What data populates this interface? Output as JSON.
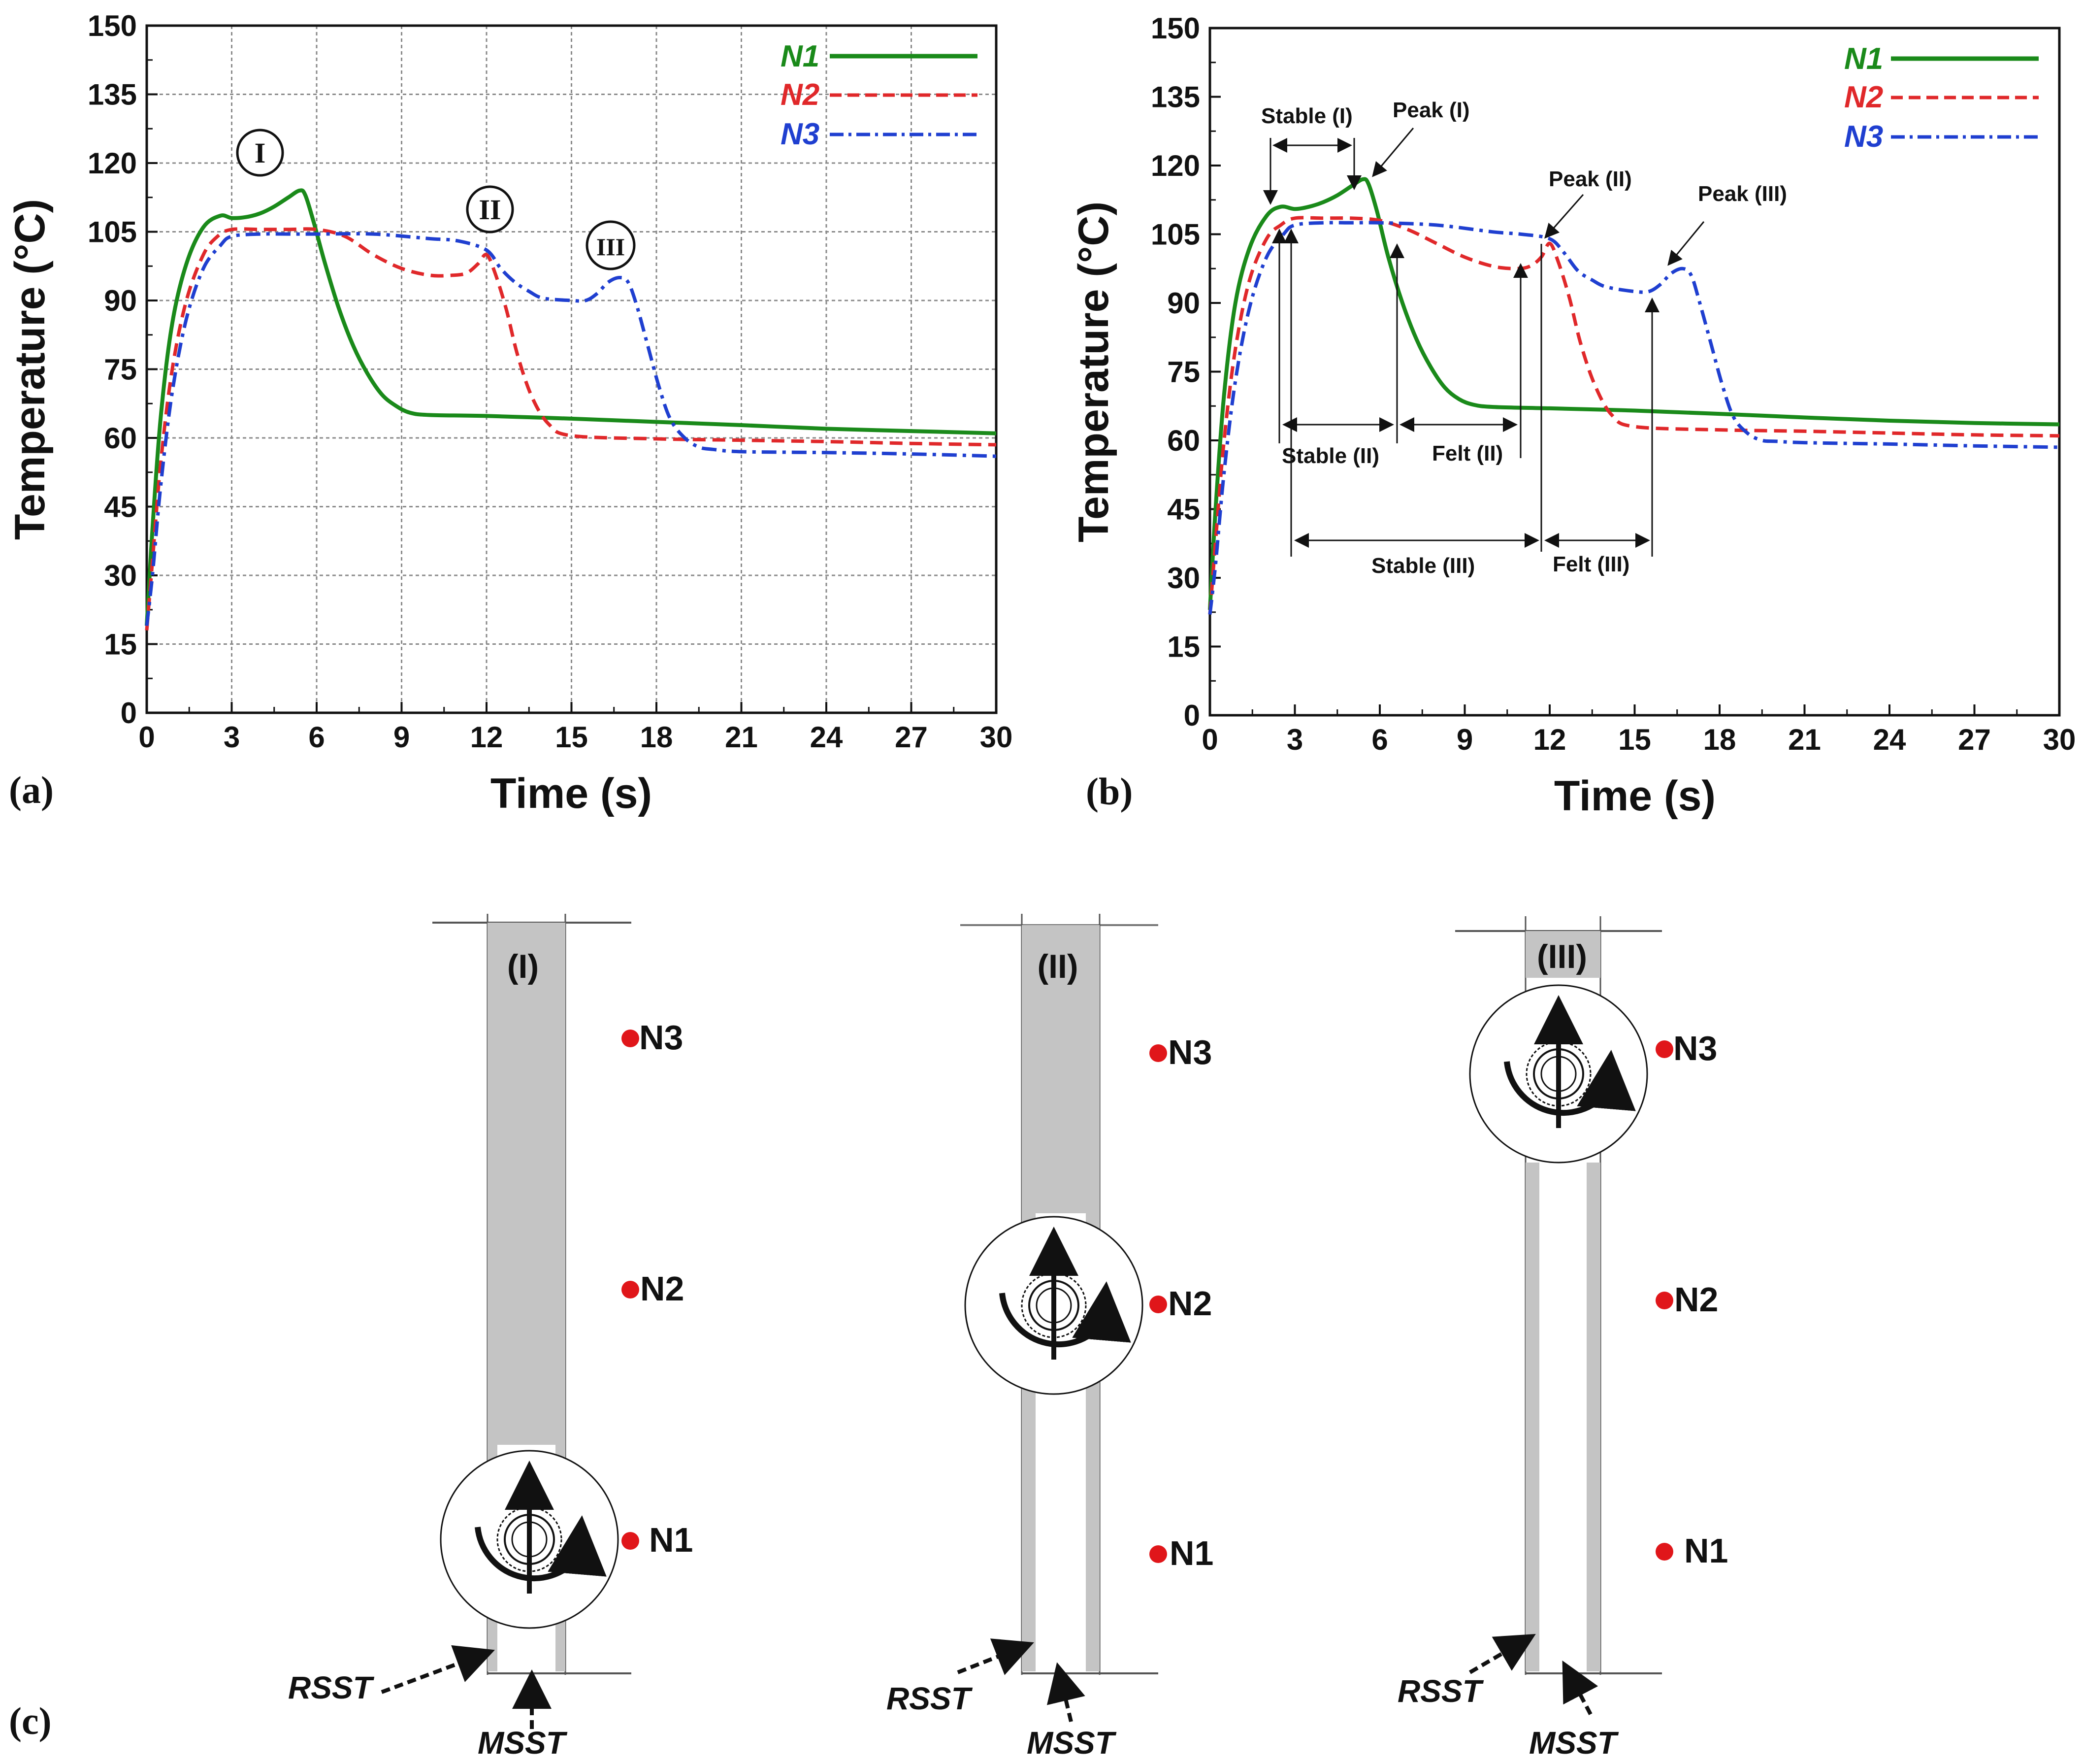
{
  "panels": {
    "a": "(a)",
    "b": "(b)",
    "c": "(c)"
  },
  "chart_data": [
    {
      "type": "line",
      "panel": "(a)",
      "title": "",
      "xlabel": "Time (s)",
      "ylabel": "Temperature (°C)",
      "xlim": [
        0,
        30
      ],
      "ylim": [
        0,
        150
      ],
      "xticks": [
        "0",
        "3",
        "6",
        "9",
        "12",
        "15",
        "18",
        "21",
        "24",
        "27",
        "30"
      ],
      "yticks": [
        "0",
        "15",
        "30",
        "45",
        "60",
        "75",
        "90",
        "105",
        "120",
        "135",
        "150"
      ],
      "grid": true,
      "legend_position": "top-right",
      "series": [
        {
          "name": "N1",
          "color": "#1a8a1a",
          "style": "solid",
          "x": [
            0,
            0.2,
            0.5,
            0.9,
            1.4,
            2.0,
            2.6,
            3.0,
            3.5,
            4.0,
            4.5,
            5.0,
            5.4,
            5.6,
            5.9,
            6.3,
            6.8,
            7.3,
            7.8,
            8.3,
            8.8,
            9.3,
            10,
            12,
            15,
            18,
            21,
            24,
            27,
            30
          ],
          "y": [
            19,
            40,
            65,
            85,
            98,
            106,
            108.5,
            108,
            108.2,
            109,
            110.5,
            112.5,
            114,
            113,
            107,
            98,
            88,
            80,
            74,
            69.5,
            67,
            65.5,
            65,
            64.8,
            64.2,
            63.5,
            62.8,
            62,
            61.5,
            61
          ]
        },
        {
          "name": "N2",
          "color": "#e0282a",
          "style": "dashed",
          "x": [
            0,
            0.2,
            0.5,
            0.9,
            1.4,
            2.0,
            2.5,
            3.0,
            4.0,
            5.0,
            6.0,
            7.0,
            8.0,
            9.0,
            10.0,
            10.8,
            11.3,
            11.7,
            12.0,
            12.3,
            12.7,
            13.1,
            13.6,
            14.2,
            15,
            18,
            21,
            24,
            27,
            30
          ],
          "y": [
            18,
            33,
            55,
            75,
            90,
            100,
            104,
            105.5,
            105.5,
            105.5,
            105.5,
            104,
            100,
            97,
            95.5,
            95.5,
            96,
            98,
            100,
            96,
            88,
            78,
            69,
            63,
            60.5,
            59.8,
            59.5,
            59.2,
            58.8,
            58.5
          ]
        },
        {
          "name": "N3",
          "color": "#1f3fd0",
          "style": "dashdot",
          "x": [
            0,
            0.2,
            0.5,
            0.9,
            1.4,
            2.0,
            2.6,
            3.0,
            4.0,
            5.0,
            6.0,
            8.0,
            10.0,
            11.0,
            12.0,
            12.5,
            13.0,
            13.5,
            14.0,
            15.0,
            15.5,
            15.9,
            16.3,
            16.7,
            17.0,
            17.3,
            17.7,
            18.1,
            18.5,
            19.0,
            19.5,
            20,
            21,
            24,
            27,
            30
          ],
          "y": [
            19,
            30,
            50,
            70,
            86,
            97,
            102,
            104,
            104.5,
            104.5,
            104.5,
            104.5,
            103.5,
            103,
            101,
            97,
            94,
            92,
            90.5,
            90,
            90,
            91.5,
            94,
            95,
            94,
            89,
            80,
            71,
            64,
            60,
            58,
            57.5,
            57,
            56.8,
            56.5,
            56
          ]
        }
      ],
      "annotations": [
        {
          "label": "I",
          "x": 4.0,
          "y": 121
        },
        {
          "label": "II",
          "x": 11.8,
          "y": 109
        },
        {
          "label": "III",
          "x": 16.5,
          "y": 101
        }
      ]
    },
    {
      "type": "line",
      "panel": "(b)",
      "title": "",
      "xlabel": "Time (s)",
      "ylabel": "Temperature (°C)",
      "xlim": [
        0,
        30
      ],
      "ylim": [
        0,
        150
      ],
      "xticks": [
        "0",
        "3",
        "6",
        "9",
        "12",
        "15",
        "18",
        "21",
        "24",
        "27",
        "30"
      ],
      "yticks": [
        "0",
        "15",
        "30",
        "45",
        "60",
        "75",
        "90",
        "105",
        "120",
        "135",
        "150"
      ],
      "grid": false,
      "legend_position": "top-right",
      "series": [
        {
          "name": "N1",
          "color": "#1a8a1a",
          "style": "solid",
          "x": [
            0,
            0.2,
            0.5,
            0.9,
            1.4,
            2.0,
            2.5,
            3.0,
            3.5,
            4.0,
            4.5,
            5.0,
            5.4,
            5.6,
            5.9,
            6.3,
            6.8,
            7.3,
            7.8,
            8.3,
            8.8,
            9.3,
            10,
            12,
            15,
            18,
            21,
            24,
            27,
            30
          ],
          "y": [
            23,
            45,
            70,
            90,
            102,
            109,
            111,
            110.5,
            111,
            112,
            113.5,
            115.5,
            117,
            116,
            110,
            100,
            90,
            82,
            76,
            71.5,
            69,
            67.8,
            67.3,
            67,
            66.5,
            65.8,
            65,
            64.3,
            63.8,
            63.5
          ]
        },
        {
          "name": "N2",
          "color": "#e0282a",
          "style": "dashed",
          "x": [
            0,
            0.2,
            0.5,
            0.9,
            1.4,
            2.0,
            2.5,
            3.0,
            4.0,
            5.0,
            6.0,
            7.0,
            8.0,
            9.0,
            10.0,
            10.8,
            11.3,
            11.7,
            12.0,
            12.3,
            12.7,
            13.1,
            13.6,
            14.2,
            15,
            18,
            21,
            24,
            27,
            30
          ],
          "y": [
            22,
            38,
            60,
            80,
            95,
            104,
            107,
            108.5,
            108.5,
            108.5,
            108,
            106,
            103,
            100,
            98,
            97.5,
            98,
            100,
            103,
            99,
            91,
            81,
            72,
            65.5,
            63,
            62.3,
            62,
            61.6,
            61.2,
            61
          ]
        },
        {
          "name": "N3",
          "color": "#1f3fd0",
          "style": "dashdot",
          "x": [
            0,
            0.2,
            0.5,
            0.9,
            1.4,
            2.0,
            2.6,
            3.0,
            4.0,
            5.0,
            6.0,
            8.0,
            10.0,
            11.0,
            12.0,
            12.5,
            13.0,
            13.5,
            14.0,
            15.0,
            15.5,
            15.9,
            16.3,
            16.7,
            17.0,
            17.3,
            17.7,
            18.1,
            18.5,
            19.0,
            19.5,
            20,
            21,
            24,
            27,
            30
          ],
          "y": [
            22,
            33,
            53,
            73,
            89,
            100,
            105,
            107,
            107.5,
            107.5,
            107.5,
            107,
            105.5,
            105,
            104,
            101,
            97,
            95,
            93.5,
            92.5,
            92.5,
            94,
            96.5,
            97.5,
            96,
            90,
            81,
            72,
            65,
            61.5,
            60,
            59.8,
            59.5,
            59.2,
            58.8,
            58.5
          ]
        }
      ],
      "annotations": [
        {
          "label": "Stable (I)",
          "x": 3.5,
          "y": 128
        },
        {
          "label": "Peak (I)",
          "x": 7.0,
          "y": 130
        },
        {
          "label": "Peak (II)",
          "x": 12.8,
          "y": 113
        },
        {
          "label": "Peak (III)",
          "x": 19.8,
          "y": 110
        },
        {
          "label": "Stable (II)",
          "x": 4.6,
          "y": 54
        },
        {
          "label": "Felt (II)",
          "x": 9.2,
          "y": 55
        },
        {
          "label": "Stable (III)",
          "x": 7.5,
          "y": 30
        },
        {
          "label": "Felt (III)",
          "x": 14.0,
          "y": 30
        }
      ]
    }
  ],
  "schematics": {
    "band_labels": [
      "(I)",
      "(II)",
      "(III)"
    ],
    "node_labels": [
      "N1",
      "N2",
      "N3"
    ],
    "tool_labels": [
      "RSST",
      "MSST"
    ]
  }
}
